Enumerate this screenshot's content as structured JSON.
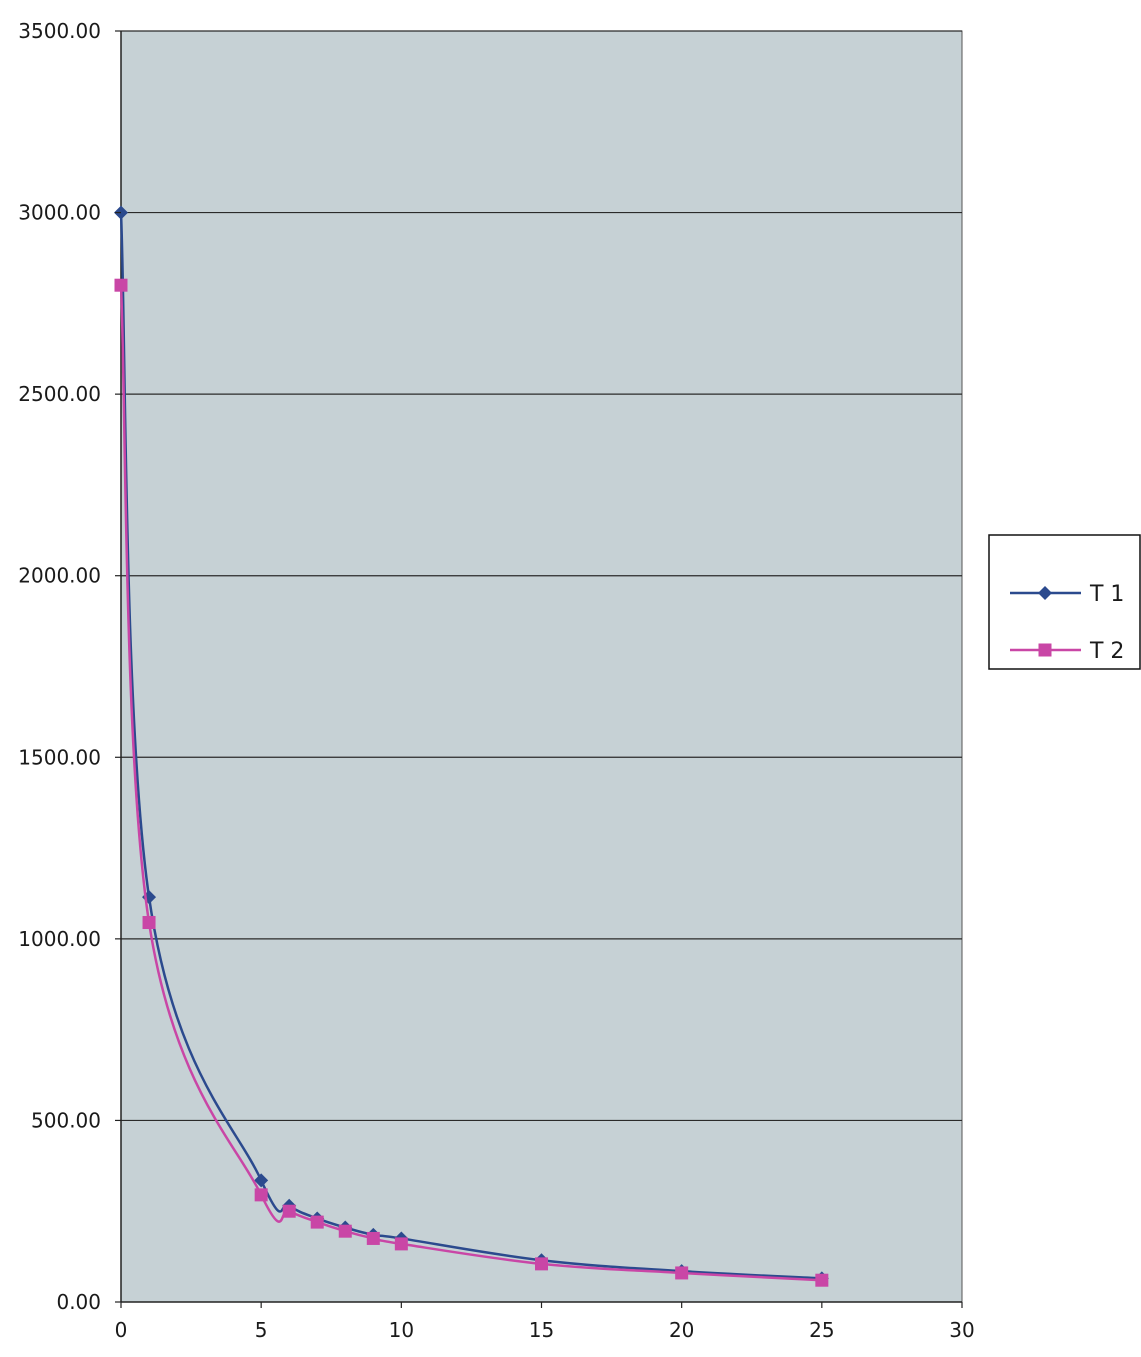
{
  "chart_data": {
    "type": "line",
    "title": "",
    "xlabel": "",
    "ylabel": "",
    "xlim": [
      0,
      30
    ],
    "ylim": [
      0,
      3500
    ],
    "x_ticks": [
      "0",
      "5",
      "10",
      "15",
      "20",
      "25",
      "30"
    ],
    "x_tick_values": [
      0,
      5,
      10,
      15,
      20,
      25,
      30
    ],
    "y_ticks": [
      "0.00",
      "500.00",
      "1000.00",
      "1500.00",
      "2000.00",
      "2500.00",
      "3000.00",
      "3500.00"
    ],
    "y_tick_values": [
      0,
      500,
      1000,
      1500,
      2000,
      2500,
      3000,
      3500
    ],
    "grid": "horizontal",
    "legend_position": "right",
    "plot_background": "#c6d1d5",
    "series": [
      {
        "name": "T 1",
        "color": "#2b4a8e",
        "marker": "diamond",
        "x": [
          0,
          1,
          5,
          6,
          7,
          8,
          9,
          10,
          15,
          20,
          25
        ],
        "y": [
          3000,
          1115,
          335,
          265,
          230,
          205,
          185,
          175,
          115,
          85,
          65
        ]
      },
      {
        "name": "T 2",
        "color": "#c946a6",
        "marker": "square",
        "x": [
          0,
          1,
          5,
          6,
          7,
          8,
          9,
          10,
          15,
          20,
          25
        ],
        "y": [
          2800,
          1045,
          295,
          250,
          220,
          195,
          175,
          160,
          105,
          80,
          60
        ]
      }
    ]
  }
}
